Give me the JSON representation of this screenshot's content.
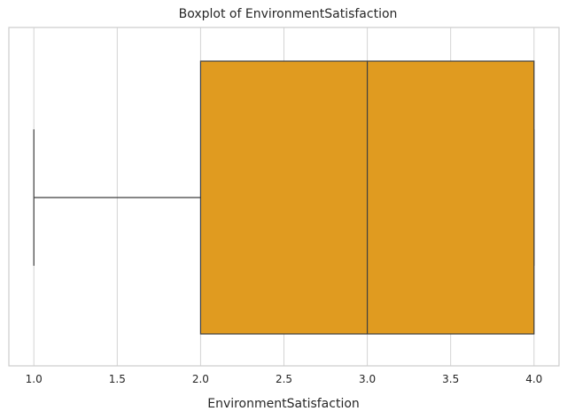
{
  "chart_data": {
    "type": "boxplot",
    "orientation": "horizontal",
    "title": "Boxplot of EnvironmentSatisfaction",
    "xlabel": "EnvironmentSatisfaction",
    "ylabel": "",
    "xlim": [
      0.85,
      4.15
    ],
    "xticks": [
      1.0,
      1.5,
      2.0,
      2.5,
      3.0,
      3.5,
      4.0
    ],
    "xtick_labels": [
      "1.0",
      "1.5",
      "2.0",
      "2.5",
      "3.0",
      "3.5",
      "4.0"
    ],
    "grid": true,
    "series": [
      {
        "whisker_low": 1.0,
        "q1": 2.0,
        "median": 3.0,
        "q3": 4.0,
        "whisker_high": 4.0
      }
    ],
    "colors": {
      "box_fill": "#e09b20",
      "line": "#3f3f3f",
      "grid": "#d3d3d3",
      "frame": "#cccccc"
    }
  }
}
